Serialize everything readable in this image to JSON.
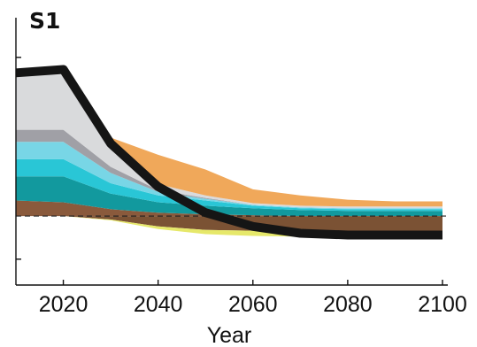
{
  "chart_data": {
    "type": "area",
    "title": "S1",
    "xlabel": "Year",
    "ylabel": "",
    "xlim": [
      2010,
      2100
    ],
    "ylim": [
      -4,
      11.5
    ],
    "x_ticks": [
      2020,
      2040,
      2060,
      2080,
      2100
    ],
    "x": [
      2010,
      2020,
      2030,
      2040,
      2050,
      2060,
      2070,
      2080,
      2090,
      2100
    ],
    "stack_positive": [
      {
        "color": "#8a5a3c",
        "values": [
          0.9,
          0.8,
          0.4,
          0.2,
          0.1,
          0.05,
          0.0,
          0.0,
          0.0,
          0.0
        ]
      },
      {
        "color": "#12999e",
        "values": [
          1.4,
          1.5,
          0.9,
          0.6,
          0.5,
          0.4,
          0.35,
          0.3,
          0.3,
          0.3
        ]
      },
      {
        "color": "#29c6d6",
        "values": [
          1.0,
          1.0,
          0.6,
          0.4,
          0.3,
          0.15,
          0.1,
          0.1,
          0.1,
          0.1
        ]
      },
      {
        "color": "#78d6e6",
        "values": [
          1.0,
          1.0,
          0.6,
          0.2,
          0.1,
          0.05,
          0.05,
          0.05,
          0.05,
          0.05
        ]
      },
      {
        "color": "#a0a0a6",
        "values": [
          0.7,
          0.7,
          0.35,
          0.1,
          0.05,
          0.0,
          0.0,
          0.0,
          0.0,
          0.0
        ]
      },
      {
        "color": "#d9dadc",
        "values": [
          3.2,
          3.2,
          1.4,
          0.35,
          0.15,
          0.1,
          0.1,
          0.1,
          0.1,
          0.1
        ]
      },
      {
        "color": "#f0a85a",
        "values": [
          0.0,
          0.0,
          0.3,
          1.7,
          1.5,
          0.8,
          0.6,
          0.4,
          0.3,
          0.3
        ]
      }
    ],
    "stack_negative": [
      {
        "color": "#7b5234",
        "values": [
          0.0,
          0.0,
          -0.2,
          -0.6,
          -0.8,
          -0.85,
          -0.9,
          -0.9,
          -0.9,
          -0.9
        ]
      },
      {
        "color": "#e6e86a",
        "values": [
          0.0,
          0.0,
          -0.05,
          -0.15,
          -0.25,
          -0.3,
          -0.3,
          -0.3,
          -0.3,
          -0.3
        ]
      }
    ],
    "net_line": {
      "color": "#151515",
      "values": [
        8.3,
        8.5,
        4.2,
        1.7,
        0.2,
        -0.6,
        -1.0,
        -1.1,
        -1.1,
        -1.1
      ]
    },
    "zero_line": "dashed",
    "grid": false,
    "legend": "none"
  }
}
